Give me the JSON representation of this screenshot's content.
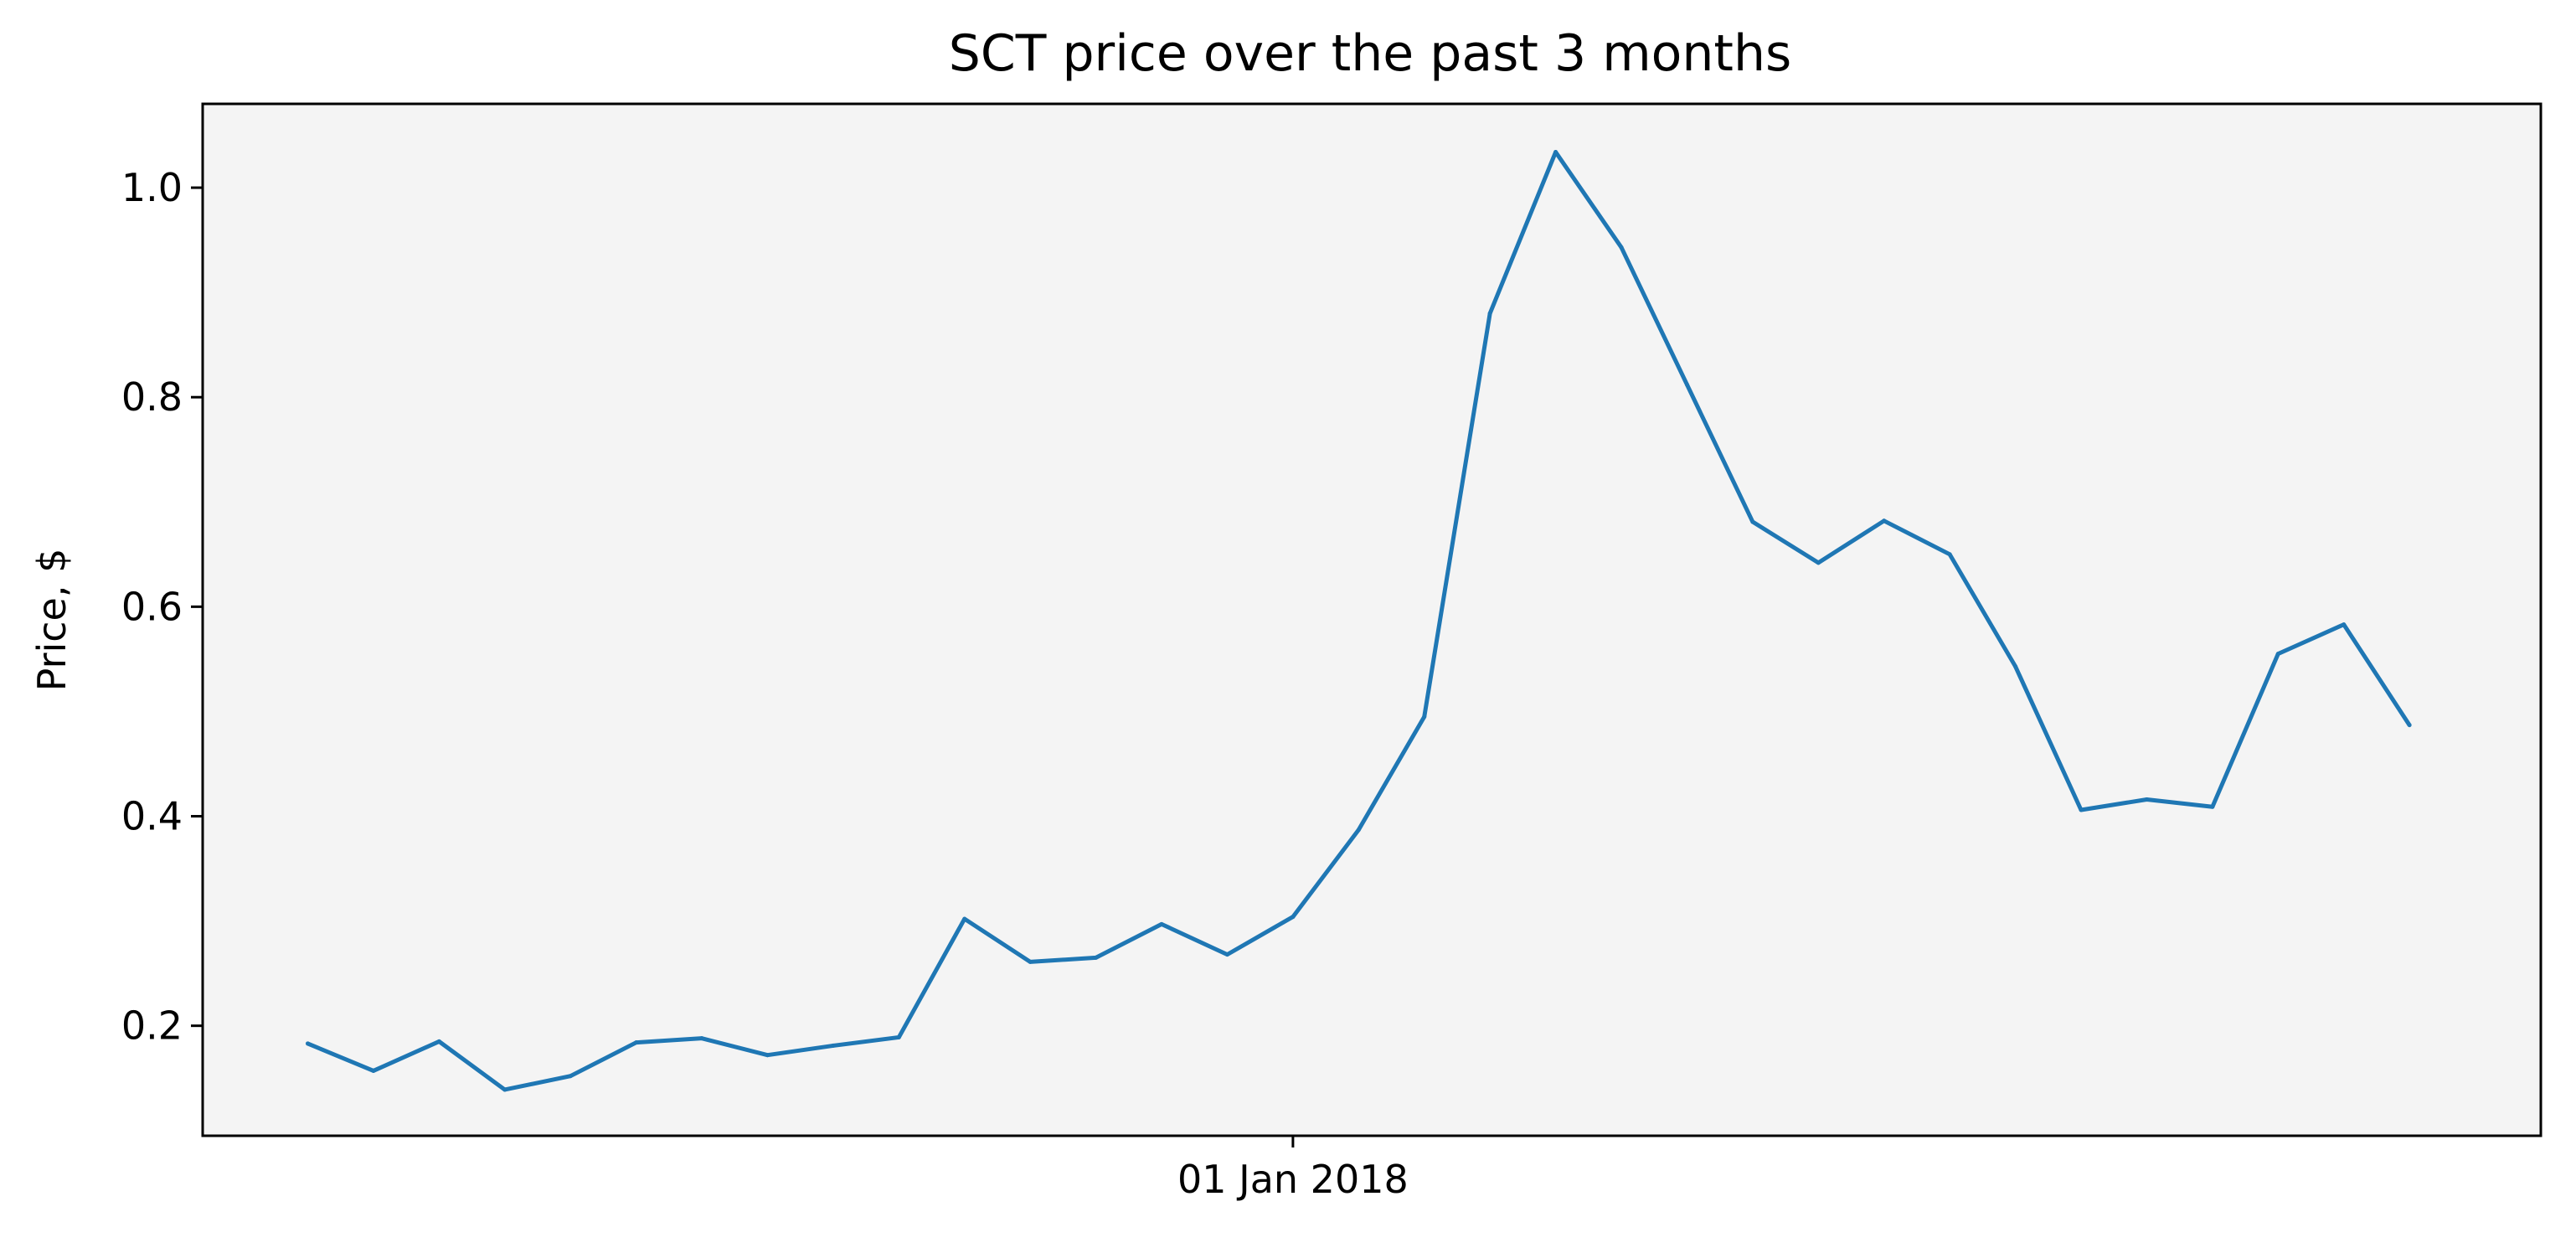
{
  "chart_data": {
    "type": "line",
    "title": "SCT price over the past 3 months",
    "xlabel": "",
    "ylabel": "Price, $",
    "x_ticks": [
      {
        "date": "2018-01-01",
        "label": "01 Jan 2018"
      }
    ],
    "y_ticks": [
      0.2,
      0.4,
      0.6,
      0.8,
      1.0
    ],
    "y_tick_labels": [
      "0.2",
      "0.4",
      "0.6",
      "0.8",
      "1.0"
    ],
    "xlim": [
      "2017-10-10",
      "2018-04-06"
    ],
    "ylim": [
      0.095,
      1.08
    ],
    "grid": false,
    "legend": "none",
    "plot_background": "#f4f4f4",
    "series": [
      {
        "color": "#1f77b4",
        "points": [
          {
            "x": "2017-10-18",
            "y": 0.183
          },
          {
            "x": "2017-10-23",
            "y": 0.157
          },
          {
            "x": "2017-10-28",
            "y": 0.185
          },
          {
            "x": "2017-11-02",
            "y": 0.139
          },
          {
            "x": "2017-11-07",
            "y": 0.152
          },
          {
            "x": "2017-11-12",
            "y": 0.184
          },
          {
            "x": "2017-11-17",
            "y": 0.188
          },
          {
            "x": "2017-11-22",
            "y": 0.172
          },
          {
            "x": "2017-11-27",
            "y": 0.181
          },
          {
            "x": "2017-12-02",
            "y": 0.189
          },
          {
            "x": "2017-12-07",
            "y": 0.302
          },
          {
            "x": "2017-12-12",
            "y": 0.261
          },
          {
            "x": "2017-12-17",
            "y": 0.265
          },
          {
            "x": "2017-12-22",
            "y": 0.297
          },
          {
            "x": "2017-12-27",
            "y": 0.268
          },
          {
            "x": "2018-01-01",
            "y": 0.304
          },
          {
            "x": "2018-01-06",
            "y": 0.387
          },
          {
            "x": "2018-01-11",
            "y": 0.495
          },
          {
            "x": "2018-01-16",
            "y": 0.88
          },
          {
            "x": "2018-01-21",
            "y": 1.034
          },
          {
            "x": "2018-01-26",
            "y": 0.943
          },
          {
            "x": "2018-01-31",
            "y": 0.812
          },
          {
            "x": "2018-02-05",
            "y": 0.681
          },
          {
            "x": "2018-02-10",
            "y": 0.642
          },
          {
            "x": "2018-02-15",
            "y": 0.682
          },
          {
            "x": "2018-02-20",
            "y": 0.65
          },
          {
            "x": "2018-02-25",
            "y": 0.543
          },
          {
            "x": "2018-03-02",
            "y": 0.406
          },
          {
            "x": "2018-03-07",
            "y": 0.416
          },
          {
            "x": "2018-03-12",
            "y": 0.409
          },
          {
            "x": "2018-03-17",
            "y": 0.555
          },
          {
            "x": "2018-03-22",
            "y": 0.583
          },
          {
            "x": "2018-03-27",
            "y": 0.487
          }
        ]
      }
    ]
  }
}
